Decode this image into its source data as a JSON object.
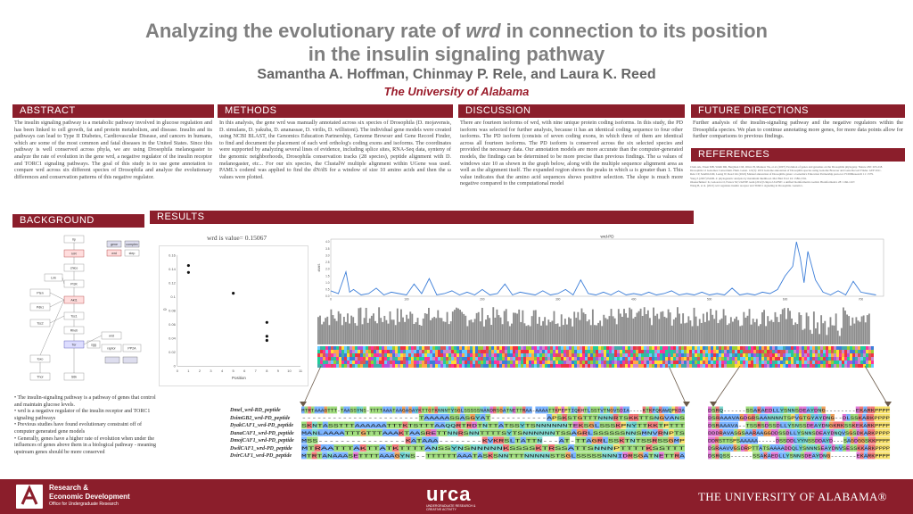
{
  "title": {
    "line1_pre": "Analyzing the evolutionary rate of ",
    "line1_gene": "wrd",
    "line1_post": " in connection to its position",
    "line2": "in the insulin signaling pathway"
  },
  "authors": "Samantha A. Hoffman, Chinmay P. Rele, and Laura K. Reed",
  "university": "The University of Alabama",
  "sections": {
    "abstract": {
      "header": "ABSTRACT",
      "text": "The insulin signaling pathway is a metabolic pathway involved in glucose regulation and has been linked to cell growth, fat and protein metabolism, and disease. Insulin and its pathways can lead to Type II Diabetes, Cardiovascular Disease, and cancers in humans, which are some of the most common and fatal diseases in the United States. Since this pathway is well conserved across phyla, we are using Drosophila melanogaster to analyze the rate of evolution in the gene wrd, a negative regulator of the insulin receptor and TORC1 signaling pathways. The goal of this study is to use gene annotation to compare wrd across six different species of Drosophila and analyze the evolutionary differences and conservation patterns of this negative regulator."
    },
    "methods": {
      "header": "METHODS",
      "text": "In this analysis, the gene wrd was manually annotated across six species of Drosophila (D. mojavensis, D. simulans, D. yakuba, D. ananassae, D. virilis, D. willistoni). The individual gene models were created using NCBI BLAST, the Genomics Education Partnership, Genome Browser and Gene Record Finder, to find and document the placement of each wrd ortholog's coding exons and isoforms. The coordinates were supported by analyzing several lines of evidence, including splice sites, RNA-Seq data, synteny of the genomic neighborhoods, Drosophila conservation tracks (28 species), peptide alignment with D. melanogaster, etc... For our six species, the ClustalW multiple alignment within UGene was used. PAML's codeml was applied to find the dN/dS for a window of size 10 amino acids and then the ω values were plotted."
    },
    "discussion": {
      "header": "DISCUSSION",
      "text": "There are fourteen isoforms of wrd, with nine unique protein coding isoforms. In this study, the PD isoform was selected for further analysis, because it has an identical coding sequence to four other isoforms. The PD isoform (consists of seven coding exons, in which three of them are identical across all fourteen isoforms. The PD isoform is conserved across the six selected species and provided the necessary data. Our annotation models are more accurate than the computer-generated models, the findings can be determined to be more precise than previous findings. The ω values of windows size 10 as shown in the graph below, along with the multiple sequence alignment area as well as the alignment itself. The expanded region shows the peaks in which ω is greater than 1. This value indicates that the amino acid sequences shows positive selection. The slope is much more negative compared to the computational model"
    },
    "future": {
      "header": "FUTURE DIRECTIONS",
      "text": "Further analysis of the insulin-signaling pathway and the negative regulators within the Drosophila species. We plan to continue annotating more genes, for more data points allow for further comparisons to previous findings."
    },
    "references": {
      "header": "REFERENCES",
      "items": [
        "Clark AG, Eisen MB, Smith DR, Bergman CM, Oliver B, Markow TA, et al. (2007) Evolution of genes and genomes on the Drosophila phylogeny. Nature 450: 203-218.",
        "Drosophila 12 Genomes Consortium. Hum. Genet. 121(5): 2019 Genome annotation of Drosophila species using Genome Browser and Gene Record Finder. GEP 2011.",
        "Rele CP, Sandlin KM, Leung W, Reed LK (2022) Manual annotation of Drosophila genes: a Genomics Education Partnership protocol. F1000Research 11: 1579.",
        "Yang Z (2007) PAML 4: phylogenetic analysis by maximum likelihood. Mol Biol Evol 24: 1586-1591.",
        "Okonechnikov K, Golosova O, Fursov M; UGENE team (2012) Unipro UGENE: a unified bioinformatics toolkit. Bioinformatics 28: 1166-1167.",
        "Wang B, et al. (2021) wrd regulates insulin receptor and TORC1 signaling in Drosophila. Genetics."
      ]
    },
    "background": {
      "header": "BACKGROUND",
      "bullets": [
        "• The insulin-signaling pathway is a pathway of genes that control and maintain glucose levels.",
        "• wrd is a negative regulator of the insulin receptor and TORC1 signaling pathways",
        "• Previous studies have found evolutionary constraint off of computer generated gene models",
        "• Generally, genes have a higher rate of evolution when under the influences of genes above them in a biological pathway - meaning upstream genes should be more conserved"
      ]
    },
    "results": {
      "header": "RESULTS"
    }
  },
  "pathway": {
    "nodes": [
      "Ilp",
      "InR",
      "chico",
      "Lnk",
      "PI3K",
      "Pten",
      "Akt1",
      "Pdk1",
      "Tsc1",
      "Tsc2",
      "Rheb",
      "Tor",
      "wrd",
      "foxo",
      "Thor",
      "S6k",
      "sgg",
      "raptor",
      "PP2A"
    ],
    "legend": [
      "gene",
      "complex",
      "wrd",
      "step"
    ]
  },
  "scatter": {
    "title": "wrd is value= 0.15067",
    "xlabel": "Position",
    "ylabel": "ω",
    "xticks": [
      "0",
      "1",
      "2",
      "3",
      "4",
      "5",
      "6",
      "7",
      "8",
      "9",
      "10",
      "11"
    ],
    "yticks": [
      "0.16",
      "0.14",
      "0.12",
      "0.1",
      "0.08",
      "0.06",
      "0.04",
      "0.02",
      "0"
    ]
  },
  "line_chart": {
    "title": "wrd-PD",
    "ylabel": "dN/dS",
    "yticks": [
      "4.0",
      "3.5",
      "3.0",
      "2.5",
      "2.0",
      "1.5",
      "1.0",
      "0.5",
      "0.0"
    ],
    "xticks": [
      "0",
      "100",
      "200",
      "300",
      "400",
      "500",
      "600",
      "700"
    ]
  },
  "chart_data": [
    {
      "type": "scatter",
      "title": "wrd is value= 0.15067",
      "xlabel": "Position",
      "ylabel": "ω",
      "xlim": [
        0,
        11
      ],
      "ylim": [
        0,
        0.16
      ],
      "x": [
        1,
        1,
        5,
        8,
        8,
        8
      ],
      "y": [
        0.145,
        0.135,
        0.105,
        0.063,
        0.043,
        0.037
      ]
    },
    {
      "type": "line",
      "title": "wrd-PD",
      "ylabel": "dN/dS",
      "xlim": [
        0,
        730
      ],
      "ylim": [
        0,
        4.2
      ],
      "x": [
        0,
        10,
        20,
        25,
        30,
        40,
        50,
        60,
        70,
        80,
        90,
        100,
        110,
        120,
        130,
        140,
        150,
        160,
        170,
        180,
        190,
        200,
        210,
        220,
        230,
        240,
        250,
        260,
        270,
        280,
        290,
        300,
        310,
        320,
        330,
        340,
        350,
        360,
        370,
        380,
        390,
        400,
        410,
        420,
        430,
        440,
        450,
        460,
        470,
        480,
        490,
        500,
        510,
        520,
        530,
        540,
        550,
        560,
        570,
        580,
        590,
        600,
        610,
        615,
        620,
        625,
        630,
        640,
        650,
        660,
        670,
        680,
        690,
        700,
        710,
        720
      ],
      "y": [
        0.4,
        0.2,
        1.8,
        0.3,
        0.5,
        0.1,
        0.2,
        0.6,
        0.1,
        0.3,
        0.2,
        0.1,
        0.9,
        0.2,
        1.3,
        0.1,
        0.2,
        0.4,
        0.1,
        0.3,
        0.1,
        0.5,
        0.1,
        0.2,
        0.9,
        0.1,
        0.3,
        0.2,
        0.1,
        0.4,
        0.1,
        0.2,
        0.5,
        0.1,
        1.2,
        0.2,
        0.1,
        0.3,
        0.1,
        0.4,
        0.1,
        0.2,
        0.1,
        0.3,
        0.1,
        0.2,
        0.4,
        0.1,
        0.2,
        0.1,
        0.3,
        0.1,
        0.2,
        0.1,
        0.6,
        0.1,
        0.2,
        0.1,
        0.3,
        0.2,
        0.5,
        1.5,
        2.2,
        4.0,
        2.8,
        1.0,
        3.3,
        1.2,
        0.3,
        0.1,
        0.4,
        0.1,
        1.1,
        0.3,
        0.2,
        0.1
      ]
    }
  ],
  "sequences": {
    "labels": [
      "Dmel_wrd-RD_peptide",
      "DsimGB2_wrd-PD_peptide",
      "DyakCAF1_wrd-PD_peptide",
      "DanaCAF1_wrd-PD_peptide",
      "DmojCAF1_wrd-PD_peptide",
      "DwilCAF1_wrd-PD_peptide",
      "DvirCAF1_wrd-PD_peptide"
    ],
    "row1": [
      "MTRTAAAGTTT-TAASSYNS-TTTTAAATAAGAGAYKTTGTKNNNTYSGLSSSSSNANDRSGATNETTRAA-AAAATTKPEPTIQKHTLSSTVTNGVSDIA----KTKFQKAWQPKDA",
      "-----------------------TAAAAASSASGYAT-----------APSKSTGTTTNNNRTSKKTTSNGVANS",
      "SKNTASSTTTAAAAAATTTKTSTTTAAQQRTRDTNTTATSSYTSNNNNNNTEKSGLSSSKPNYTTKKTPTTT",
      "MANLAAAATTTGTTTAAAKTAASRETTNNRSNNTTTTSYTSNNNNNNTSSAGRLSSSSSSNNSMNVRNPTS",
      "MSS----------------KATAAA--------KVKRSLTATTN---AT-TTAGRLSSKTNTSSRSSGMP",
      "MTRAATTTAKTTATKTTTTANSSYNSNNNNNKSSSSKTRSSATTSNNNPTTTTKSSTTT",
      "MTRTANAAASETTTTAAAGYNS--TTTTTTAAATASKSNNTTTNNNNNSTSGLSSSSSNNNIDRSGATNETTRA"
    ],
    "row2": [
      "DSRQ------SSAKAEDLLYSNNSDEAYDNG--------EKARKPPPP",
      "DSRAAAVAGDGRSAANNNNTSPVGTGYAYDNG--DLSSKARKPPPP",
      "DSRAAAVA--TSSRSDSSDLLYSNSSDEAYDNGKRKSSKEKARKPPPP",
      "DDDRAVASGSAARAAGGDDSSDLLYSNNSDEAYDNQVSGSDKARKPPPP",
      "DDRSTTSPSAAAAA-----DSSDDLYYNSSDDAYD---SAGDGGSKKPPPP",
      "DSRAAVVGSDRPTTATSAAAADDQLYSNNNSEAYDNVSESSKKARKPPPP",
      "DSRQSS------SSAKAEDLLYSNNSDEAYDNG-------EKARKPPPP"
    ]
  },
  "footer": {
    "re_line1": "Research &",
    "re_line2": "Economic Development",
    "re_line3": "Office for Undergraduate Research",
    "urca": "urca",
    "urca_sub": "UNDERGRADUATE RESEARCH & CREATIVE ACTIVITY",
    "ua": "THE UNIVERSITY OF ALABAMA®"
  },
  "colors": {
    "accent": "#8b1e2b",
    "title_gray": "#7f7f7f",
    "line_blue": "#3b7dd8",
    "bar_gray": "#8c8c8c"
  }
}
